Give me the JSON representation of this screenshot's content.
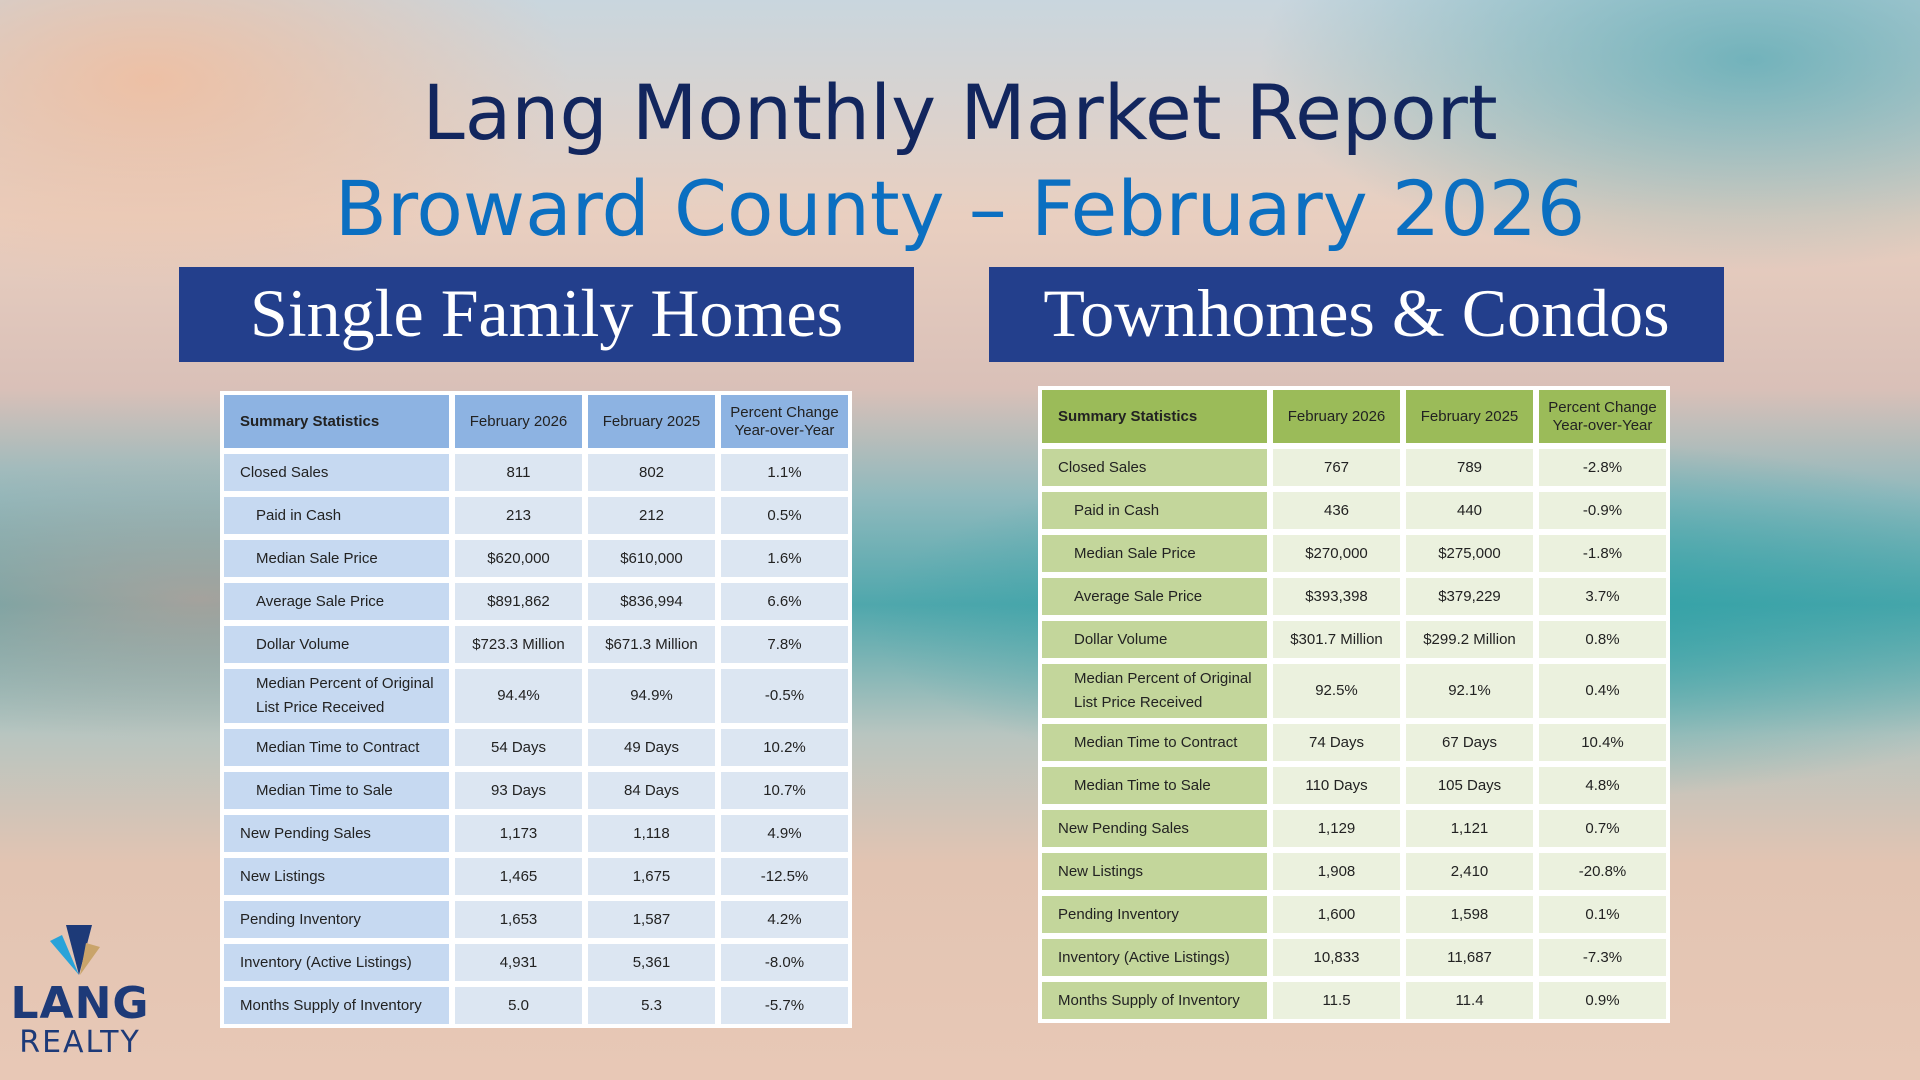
{
  "title": "Lang Monthly Market Report",
  "subtitle": "Broward County – February 2026",
  "logo": {
    "line1": "LANG",
    "line2": "REALTY",
    "colors": [
      "#1d3a78",
      "#29a3d9",
      "#c9a46a"
    ]
  },
  "colors": {
    "banner": "#233f8c",
    "title": "#12265e",
    "subtitle": "#0b6fc1",
    "sfh_header": "#8db3e2",
    "condo_header": "#9bbb59"
  },
  "tables": [
    {
      "banner": "Single Family Homes",
      "headers": [
        "Summary Statistics",
        "February 2026",
        "February 2025",
        "Percent Change Year-over-Year"
      ],
      "rows": [
        {
          "label": "Closed Sales",
          "indent": false,
          "values": [
            "811",
            "802",
            "1.1%"
          ]
        },
        {
          "label": "Paid in Cash",
          "indent": true,
          "values": [
            "213",
            "212",
            "0.5%"
          ]
        },
        {
          "label": "Median Sale Price",
          "indent": true,
          "values": [
            "$620,000",
            "$610,000",
            "1.6%"
          ]
        },
        {
          "label": "Average Sale Price",
          "indent": true,
          "values": [
            "$891,862",
            "$836,994",
            "6.6%"
          ]
        },
        {
          "label": "Dollar Volume",
          "indent": true,
          "values": [
            "$723.3 Million",
            "$671.3 Million",
            "7.8%"
          ]
        },
        {
          "label": "Median Percent of Original List Price Received",
          "indent": true,
          "values": [
            "94.4%",
            "94.9%",
            "-0.5%"
          ]
        },
        {
          "label": "Median Time to Contract",
          "indent": true,
          "values": [
            "54 Days",
            "49 Days",
            "10.2%"
          ]
        },
        {
          "label": "Median Time to Sale",
          "indent": true,
          "values": [
            "93 Days",
            "84 Days",
            "10.7%"
          ]
        },
        {
          "label": "New Pending Sales",
          "indent": false,
          "values": [
            "1,173",
            "1,118",
            "4.9%"
          ]
        },
        {
          "label": "New Listings",
          "indent": false,
          "values": [
            "1,465",
            "1,675",
            "-12.5%"
          ]
        },
        {
          "label": "Pending Inventory",
          "indent": false,
          "values": [
            "1,653",
            "1,587",
            "4.2%"
          ]
        },
        {
          "label": "Inventory (Active Listings)",
          "indent": false,
          "values": [
            "4,931",
            "5,361",
            "-8.0%"
          ]
        },
        {
          "label": "Months Supply of Inventory",
          "indent": false,
          "values": [
            "5.0",
            "5.3",
            "-5.7%"
          ]
        }
      ]
    },
    {
      "banner": "Townhomes & Condos",
      "headers": [
        "Summary Statistics",
        "February 2026",
        "February 2025",
        "Percent Change Year-over-Year"
      ],
      "rows": [
        {
          "label": "Closed Sales",
          "indent": false,
          "values": [
            "767",
            "789",
            "-2.8%"
          ]
        },
        {
          "label": "Paid in Cash",
          "indent": true,
          "values": [
            "436",
            "440",
            "-0.9%"
          ]
        },
        {
          "label": "Median Sale Price",
          "indent": true,
          "values": [
            "$270,000",
            "$275,000",
            "-1.8%"
          ]
        },
        {
          "label": "Average Sale Price",
          "indent": true,
          "values": [
            "$393,398",
            "$379,229",
            "3.7%"
          ]
        },
        {
          "label": "Dollar Volume",
          "indent": true,
          "values": [
            "$301.7 Million",
            "$299.2 Million",
            "0.8%"
          ]
        },
        {
          "label": "Median Percent of Original List Price Received",
          "indent": true,
          "values": [
            "92.5%",
            "92.1%",
            "0.4%"
          ]
        },
        {
          "label": "Median Time to Contract",
          "indent": true,
          "values": [
            "74 Days",
            "67 Days",
            "10.4%"
          ]
        },
        {
          "label": "Median Time to Sale",
          "indent": true,
          "values": [
            "110 Days",
            "105 Days",
            "4.8%"
          ]
        },
        {
          "label": "New Pending Sales",
          "indent": false,
          "values": [
            "1,129",
            "1,121",
            "0.7%"
          ]
        },
        {
          "label": "New Listings",
          "indent": false,
          "values": [
            "1,908",
            "2,410",
            "-20.8%"
          ]
        },
        {
          "label": "Pending Inventory",
          "indent": false,
          "values": [
            "1,600",
            "1,598",
            "0.1%"
          ]
        },
        {
          "label": "Inventory (Active Listings)",
          "indent": false,
          "values": [
            "10,833",
            "11,687",
            "-7.3%"
          ]
        },
        {
          "label": "Months Supply of Inventory",
          "indent": false,
          "values": [
            "11.5",
            "11.4",
            "0.9%"
          ]
        }
      ]
    }
  ]
}
